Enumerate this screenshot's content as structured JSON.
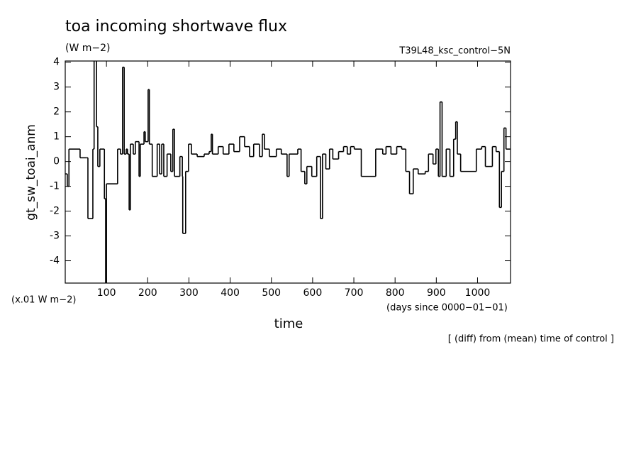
{
  "chart_data": {
    "type": "line",
    "step": true,
    "title": "toa incoming shortwave flux",
    "units": "(W m−2)",
    "run_label": "T39L48_ksc_control−5N",
    "y_label": "gt_sw_toai_anm",
    "x_label": "time",
    "y_scale_note": "(x.01 W m−2)",
    "x_units": "(days since 0000−01−01)",
    "footnote": "[ (diff) from (mean) time of control ]",
    "color": "#000000",
    "xlim": [
      0,
      1080
    ],
    "ylim": [
      -4.9,
      4.05
    ],
    "xticks": [
      100,
      200,
      300,
      400,
      500,
      600,
      700,
      800,
      900,
      1000
    ],
    "yticks": [
      -4,
      -3,
      -2,
      -1,
      0,
      1,
      2,
      3,
      4
    ],
    "x": [
      0,
      5,
      9,
      36,
      52,
      55,
      67,
      70,
      76,
      79,
      84,
      95,
      98,
      100,
      127,
      134,
      139,
      143,
      148,
      151,
      155,
      158,
      165,
      170,
      179,
      182,
      191,
      194,
      201,
      204,
      211,
      223,
      229,
      234,
      239,
      247,
      256,
      261,
      265,
      278,
      284,
      285,
      292,
      299,
      306,
      320,
      337,
      349,
      354,
      357,
      371,
      383,
      397,
      409,
      423,
      435,
      447,
      457,
      471,
      478,
      483,
      495,
      512,
      524,
      538,
      543,
      564,
      572,
      581,
      586,
      598,
      610,
      619,
      624,
      632,
      641,
      649,
      663,
      675,
      684,
      692,
      701,
      718,
      753,
      770,
      778,
      790,
      804,
      816,
      826,
      835,
      844,
      856,
      873,
      881,
      892,
      899,
      905,
      909,
      914,
      924,
      933,
      942,
      947,
      951,
      959,
      997,
      1010,
      1019,
      1036,
      1045,
      1053,
      1058,
      1064,
      1069
    ],
    "values": [
      -0.5,
      -1,
      0.5,
      0.15,
      0.15,
      -2.3,
      0.5,
      4.3,
      1.4,
      -0.2,
      0.5,
      -1.5,
      -4.9,
      -0.9,
      0.5,
      0.3,
      3.8,
      0.3,
      0.5,
      0.3,
      -1.95,
      0.7,
      0.3,
      0.8,
      -0.6,
      0.7,
      1.2,
      0.8,
      2.9,
      0.7,
      -0.6,
      0.7,
      -0.5,
      0.7,
      -0.6,
      0.3,
      -0.4,
      1.3,
      -0.6,
      0.2,
      -0.6,
      -2.9,
      -0.4,
      0.7,
      0.3,
      0.2,
      0.3,
      0.4,
      1.1,
      0.3,
      0.6,
      0.3,
      0.7,
      0.4,
      1.0,
      0.6,
      0.2,
      0.7,
      0.2,
      1.1,
      0.5,
      0.2,
      0.5,
      0.3,
      -0.6,
      0.3,
      0.5,
      -0.4,
      -0.9,
      -0.2,
      -0.6,
      0.2,
      -2.3,
      0.3,
      -0.3,
      0.5,
      0.1,
      0.4,
      0.6,
      0.3,
      0.6,
      0.5,
      -0.6,
      0.5,
      0.3,
      0.6,
      0.3,
      0.6,
      0.5,
      -0.4,
      -1.3,
      -0.3,
      -0.5,
      -0.4,
      0.3,
      -0.1,
      0.5,
      -0.6,
      2.4,
      -0.6,
      0.5,
      -0.6,
      0.9,
      1.6,
      0.3,
      -0.4,
      0.5,
      0.6,
      -0.2,
      0.6,
      0.4,
      -1.85,
      -0.4,
      1.35,
      0.5
    ]
  }
}
